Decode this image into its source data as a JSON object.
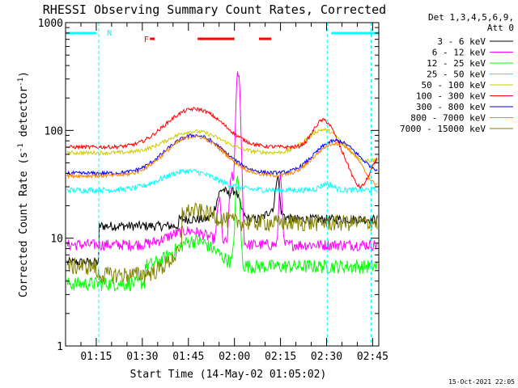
{
  "chart_data": {
    "type": "line",
    "title": "RHESSI Observing Summary Count Rates, Corrected",
    "xlabel": "Start Time (14-May-02 01:05:02)",
    "ylabel_main": "Corrected Count Rate (s",
    "ylabel_sup1": "-1",
    "ylabel_mid": " detector",
    "ylabel_sup2": "-1",
    "ylabel_end": ")",
    "yscale": "log",
    "ylim": [
      1,
      1000
    ],
    "xlim_min": [
      0,
      102
    ],
    "y_ticks": [
      {
        "value": 1,
        "label": "1"
      },
      {
        "value": 10,
        "label": "10"
      },
      {
        "value": 100,
        "label": "100"
      },
      {
        "value": 1000,
        "label": "1000"
      }
    ],
    "x_ticks": [
      {
        "value": 10,
        "label": "01:15"
      },
      {
        "value": 25,
        "label": "01:30"
      },
      {
        "value": 40,
        "label": "01:45"
      },
      {
        "value": 55,
        "label": "02:00"
      },
      {
        "value": 70,
        "label": "02:15"
      },
      {
        "value": 85,
        "label": "02:30"
      },
      {
        "value": 100,
        "label": "02:45"
      }
    ],
    "legend": {
      "placement": "right",
      "header_line1": "Det 1,3,4,5,6,9,",
      "header_line2": "Att 0"
    },
    "series": [
      {
        "name": "3 - 6 keV",
        "color": "#000000"
      },
      {
        "name": "6 - 12 keV",
        "color": "#ff00ff"
      },
      {
        "name": "12 - 25 keV",
        "color": "#00ff00"
      },
      {
        "name": "25 - 50 keV",
        "color": "#00ffff"
      },
      {
        "name": "50 - 100 keV",
        "color": "#cccc00"
      },
      {
        "name": "100 - 300 keV",
        "color": "#ff0000"
      },
      {
        "name": "300 - 800 keV",
        "color": "#0000ff"
      },
      {
        "name": "800 - 7000 keV",
        "color": "#ff8000"
      },
      {
        "name": "7000 - 15000 keV",
        "color": "#808000"
      }
    ],
    "annotations": {
      "night_marker": "N",
      "flare_marker": "F",
      "night_color": "#00ffff",
      "flare_color": "#ff0000",
      "night_bars_min": [
        [
          0,
          10
        ],
        [
          86.5,
          102
        ]
      ],
      "night_boundaries_min": [
        0,
        10.8,
        85.2,
        99.5
      ],
      "flare_bars_min": [
        [
          27.5,
          29
        ],
        [
          43,
          55
        ],
        [
          63,
          67
        ]
      ]
    },
    "footer_timestamp": "15-Oct-2021 22:05"
  }
}
